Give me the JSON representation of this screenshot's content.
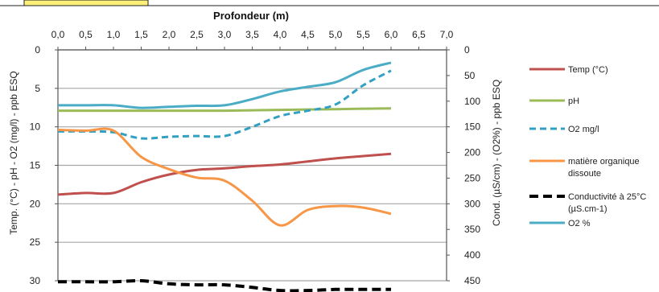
{
  "chart_data": {
    "type": "line",
    "x_axis": {
      "title": "Profondeur (m)",
      "position": "top",
      "range": [
        0,
        7
      ],
      "tick_labels": [
        "0,0",
        "0,5",
        "1,0",
        "1,5",
        "2,0",
        "2,5",
        "3,0",
        "3,5",
        "4,0",
        "4,5",
        "5,0",
        "5,5",
        "6,0",
        "6,5",
        "7,0"
      ]
    },
    "y_left": {
      "title": "Temp. (°C) - pH - O2 (mg/l) - ppb ESQ",
      "range": [
        0,
        30
      ],
      "inverted": true,
      "tick_labels": [
        "0",
        "5",
        "10",
        "15",
        "20",
        "25",
        "30"
      ]
    },
    "y_right": {
      "title": "Cond. (µS/cm) - (O2%) - ppb ESQ",
      "range": [
        0,
        450
      ],
      "inverted": true,
      "tick_labels": [
        "0",
        "50",
        "100",
        "150",
        "200",
        "250",
        "300",
        "350",
        "400",
        "450"
      ]
    },
    "grid": "horizontal",
    "legend_position": "right",
    "series": [
      {
        "name": "Temp (°C)",
        "axis": "left",
        "color": "#c0504d",
        "dash": "solid",
        "x": [
          0,
          0.5,
          1.0,
          1.5,
          2.0,
          2.5,
          3.0,
          3.5,
          4.0,
          4.5,
          5.0,
          5.5,
          6.0
        ],
        "y": [
          18.8,
          18.6,
          18.6,
          17.2,
          16.2,
          15.6,
          15.4,
          15.1,
          14.9,
          14.5,
          14.1,
          13.8,
          13.5
        ]
      },
      {
        "name": "pH",
        "axis": "left",
        "color": "#9bbb59",
        "dash": "solid",
        "x": [
          0,
          1.0,
          2.0,
          3.0,
          4.0,
          5.0,
          6.0
        ],
        "y": [
          7.9,
          7.9,
          7.9,
          7.9,
          7.8,
          7.7,
          7.6
        ]
      },
      {
        "name": "O2  mg/l",
        "axis": "left",
        "color": "#31a0c3",
        "dash": "dashed",
        "x": [
          0,
          0.5,
          1.0,
          1.5,
          2.0,
          2.5,
          3.0,
          3.5,
          4.0,
          4.5,
          5.0,
          5.5,
          6.0
        ],
        "y": [
          10.6,
          10.6,
          10.7,
          11.5,
          11.3,
          11.2,
          11.2,
          10.0,
          8.6,
          7.9,
          7.1,
          4.6,
          2.7
        ]
      },
      {
        "name": "matière organique dissoute",
        "axis": "left",
        "color": "#f79646",
        "dash": "solid",
        "x": [
          0,
          0.5,
          1.0,
          1.5,
          2.0,
          2.5,
          3.0,
          3.5,
          4.0,
          4.5,
          5.0,
          5.5,
          6.0
        ],
        "y": [
          10.4,
          10.5,
          10.5,
          13.9,
          15.5,
          16.6,
          17.0,
          19.6,
          22.8,
          20.8,
          20.3,
          20.5,
          21.3
        ]
      },
      {
        "name": "Conductivité à 25°C (µS.cm-1)",
        "axis": "right",
        "color": "#000000",
        "dash": "dashed-thick",
        "x": [
          0,
          0.5,
          1.0,
          1.5,
          2.0,
          2.5,
          3.0,
          3.5,
          4.0,
          4.5,
          5.0,
          5.5,
          6.0
        ],
        "y": [
          452,
          452,
          452,
          450,
          456,
          458,
          458,
          463,
          469,
          469,
          467,
          467,
          467
        ]
      },
      {
        "name": "O2 %",
        "axis": "right",
        "color": "#4bacc6",
        "dash": "solid",
        "x": [
          0,
          0.5,
          1.0,
          1.5,
          2.0,
          2.5,
          3.0,
          3.5,
          4.0,
          4.5,
          5.0,
          5.5,
          6.0
        ],
        "y": [
          108,
          108,
          108,
          113,
          111,
          109,
          108,
          96,
          81,
          72,
          63,
          39,
          25
        ]
      }
    ]
  }
}
